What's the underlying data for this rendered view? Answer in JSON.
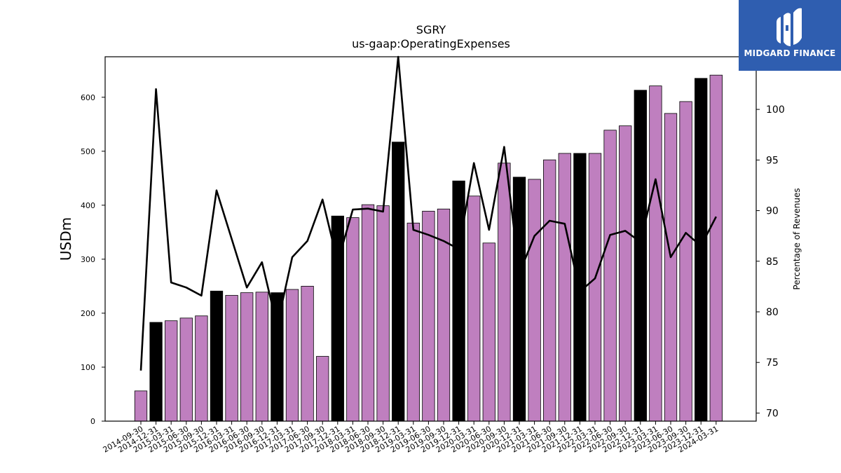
{
  "chart_data": {
    "type": "bar+line",
    "title": "SGRY",
    "subtitle": "us-gaap:OperatingExpenses",
    "ylabel": "USDm",
    "ylabel_right": "Percentage of Revenues",
    "ylim": [
      0,
      675
    ],
    "ylim_right": [
      69.2,
      105.2
    ],
    "yticks": [
      0,
      100,
      200,
      300,
      400,
      500,
      600
    ],
    "yticks_right": [
      70,
      75,
      80,
      85,
      90,
      95,
      100
    ],
    "grid": false,
    "categories": [
      "2014-09-30",
      "2014-12-31",
      "2015-03-31",
      "2015-06-30",
      "2015-09-30",
      "2015-12-31",
      "2016-03-31",
      "2016-06-30",
      "2016-09-30",
      "2016-12-31",
      "2017-03-31",
      "2017-06-30",
      "2017-09-30",
      "2017-12-31",
      "2018-03-31",
      "2018-06-30",
      "2018-09-30",
      "2018-12-31",
      "2019-03-31",
      "2019-06-30",
      "2019-09-30",
      "2019-12-31",
      "2020-03-31",
      "2020-06-30",
      "2020-09-30",
      "2020-12-31",
      "2021-03-31",
      "2021-06-30",
      "2021-09-30",
      "2021-12-31",
      "2022-03-31",
      "2022-06-30",
      "2022-09-30",
      "2022-12-31",
      "2023-03-31",
      "2023-06-30",
      "2023-09-30",
      "2023-12-31",
      "2024-03-31"
    ],
    "series": [
      {
        "type": "bar",
        "values": [
          56,
          183,
          186,
          191,
          195,
          241,
          233,
          238,
          239,
          238,
          244,
          250,
          120,
          380,
          377,
          401,
          399,
          517,
          367,
          389,
          393,
          445,
          417,
          330,
          478,
          452,
          448,
          484,
          496,
          496,
          496,
          539,
          547,
          613,
          621,
          570,
          592,
          635,
          641
        ],
        "colors": [
          "#bf7fbf",
          "#000000",
          "#bf7fbf",
          "#bf7fbf",
          "#bf7fbf",
          "#000000",
          "#bf7fbf",
          "#bf7fbf",
          "#bf7fbf",
          "#000000",
          "#bf7fbf",
          "#bf7fbf",
          "#bf7fbf",
          "#000000",
          "#bf7fbf",
          "#bf7fbf",
          "#bf7fbf",
          "#000000",
          "#bf7fbf",
          "#bf7fbf",
          "#bf7fbf",
          "#000000",
          "#bf7fbf",
          "#bf7fbf",
          "#bf7fbf",
          "#000000",
          "#bf7fbf",
          "#bf7fbf",
          "#bf7fbf",
          "#000000",
          "#bf7fbf",
          "#bf7fbf",
          "#bf7fbf",
          "#000000",
          "#bf7fbf",
          "#bf7fbf",
          "#bf7fbf",
          "#000000",
          "#bf7fbf"
        ]
      },
      {
        "type": "line",
        "axis": "right",
        "color": "#000000",
        "values": [
          74.2,
          102.0,
          82.9,
          82.4,
          81.6,
          92.0,
          87.2,
          82.4,
          84.9,
          78.6,
          85.4,
          87.0,
          91.1,
          84.9,
          90.1,
          90.2,
          89.9,
          105.2,
          88.1,
          87.6,
          87.0,
          86.2,
          94.7,
          88.1,
          96.3,
          83.8,
          87.5,
          89.0,
          88.7,
          82.0,
          83.3,
          87.6,
          88.0,
          86.9,
          93.1,
          85.4,
          87.8,
          86.5,
          89.4
        ]
      }
    ]
  },
  "logo": {
    "text": "MIDGARD FINANCE",
    "color": "#2f5eb0"
  }
}
